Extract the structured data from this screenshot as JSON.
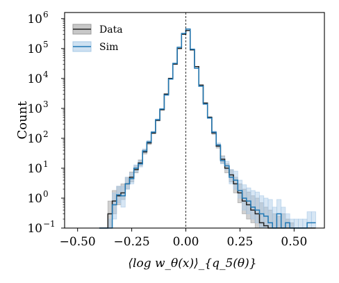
{
  "chart_data": {
    "type": "step-histogram",
    "xlabel": "⟨log w_θ(x)⟩_{q_5(θ)}",
    "ylabel": "Count",
    "y_scale": "log",
    "xlim": [
      -0.56,
      0.64
    ],
    "ylim": [
      0.1,
      1600000
    ],
    "x_ticks": [
      -0.5,
      -0.25,
      0.0,
      0.25,
      0.5
    ],
    "x_tick_labels": [
      "−0.50",
      "−0.25",
      "0.00",
      "0.25",
      "0.50"
    ],
    "y_ticks": [
      0.1,
      1,
      10,
      100,
      1000,
      10000,
      100000,
      1000000
    ],
    "y_tick_exponents": [
      "−1",
      "0",
      "1",
      "2",
      "3",
      "4",
      "5",
      "6"
    ],
    "reference_line_x": 0.0,
    "grid": false,
    "legend_position": "top-left",
    "bin_edges": [
      -0.4,
      -0.38,
      -0.36,
      -0.34,
      -0.32,
      -0.3,
      -0.28,
      -0.26,
      -0.24,
      -0.22,
      -0.2,
      -0.18,
      -0.16,
      -0.14,
      -0.12,
      -0.1,
      -0.08,
      -0.06,
      -0.04,
      -0.02,
      0.0,
      0.02,
      0.04,
      0.06,
      0.08,
      0.1,
      0.12,
      0.14,
      0.16,
      0.18,
      0.2,
      0.22,
      0.24,
      0.26,
      0.28,
      0.3,
      0.32,
      0.34,
      0.36,
      0.38,
      0.4,
      0.42,
      0.44,
      0.46,
      0.48,
      0.5,
      0.52,
      0.54,
      0.56,
      0.58,
      0.6
    ],
    "series": [
      {
        "name": "Data",
        "color": "#222222",
        "band_color": "#9a9a9a",
        "counts": [
          0.1,
          0.1,
          0.3,
          0.8,
          1.2,
          1.5,
          3,
          5,
          9,
          15,
          35,
          70,
          150,
          400,
          900,
          3000,
          10000,
          30000,
          100000,
          300000,
          400000,
          90000,
          25000,
          6000,
          1500,
          500,
          150,
          55,
          20,
          10,
          6,
          3,
          1.5,
          0.8,
          0.6,
          0.4,
          0.3,
          0.15,
          0.12,
          0.1,
          0.1,
          0.1,
          0.1,
          0.1,
          0.1,
          0.1,
          0.1,
          0.1,
          0.1,
          0.1
        ],
        "lower": [
          0.1,
          0.1,
          0.1,
          0.3,
          0.6,
          0.9,
          2,
          3.5,
          7,
          12,
          30,
          62,
          140,
          380,
          870,
          2950,
          9900,
          29800,
          99500,
          299000,
          399000,
          89700,
          24800,
          5900,
          1450,
          470,
          135,
          47,
          15,
          7,
          3.5,
          1.5,
          0.7,
          0.3,
          0.2,
          0.15,
          0.1,
          0.1,
          0.1,
          0.1,
          0.1,
          0.1,
          0.1,
          0.1,
          0.1,
          0.1,
          0.1,
          0.1,
          0.1,
          0.1
        ],
        "upper": [
          0.1,
          0.1,
          0.8,
          1.8,
          2.5,
          3,
          5,
          7.5,
          12,
          19,
          42,
          80,
          165,
          425,
          935,
          3060,
          10100,
          30200,
          100500,
          301000,
          401000,
          90300,
          25200,
          6100,
          1550,
          530,
          165,
          64,
          26,
          14,
          9,
          5,
          3,
          2,
          1.6,
          1.2,
          1,
          0.7,
          0.5,
          0.4,
          0.3,
          0.25,
          0.3,
          0.2,
          0.15,
          0.1,
          0.1,
          0.1,
          0.1,
          0.1
        ]
      },
      {
        "name": "Sim",
        "color": "#1f77b4",
        "band_color": "#a6c8e6",
        "counts": [
          0.1,
          0.1,
          0.1,
          0.6,
          1.3,
          1.2,
          3,
          4.5,
          10,
          14,
          38,
          75,
          160,
          420,
          950,
          2800,
          9500,
          32000,
          110000,
          320000,
          450000,
          95000,
          22000,
          5500,
          1400,
          480,
          160,
          60,
          18,
          12,
          5,
          4,
          1.8,
          1,
          0.8,
          0.5,
          0.4,
          0.3,
          0.25,
          0.15,
          0.1,
          0.3,
          0.1,
          0.15,
          0.1,
          0.1,
          0.1,
          0.1,
          0.15,
          0.15
        ],
        "lower": [
          0.1,
          0.1,
          0.1,
          0.2,
          0.7,
          0.5,
          2,
          3,
          7.5,
          11,
          33,
          67,
          150,
          400,
          920,
          2760,
          9400,
          31800,
          109500,
          319000,
          449000,
          94700,
          21800,
          5400,
          1350,
          455,
          145,
          52,
          14,
          9,
          3,
          2,
          1,
          0.4,
          0.3,
          0.2,
          0.15,
          0.1,
          0.1,
          0.1,
          0.1,
          0.1,
          0.1,
          0.1,
          0.1,
          0.1,
          0.1,
          0.1,
          0.1,
          0.1
        ],
        "upper": [
          0.1,
          0.1,
          0.2,
          1.5,
          2.5,
          2.5,
          5,
          7,
          13,
          18,
          44,
          84,
          172,
          442,
          982,
          2850,
          9600,
          32200,
          110500,
          321000,
          451000,
          95300,
          22300,
          5650,
          1460,
          510,
          175,
          70,
          24,
          17,
          9,
          8,
          4,
          2.8,
          2.2,
          1.8,
          1.6,
          1.2,
          1,
          0.9,
          0.5,
          0.9,
          0.5,
          0.3,
          0.2,
          0.2,
          0.2,
          0.2,
          0.35,
          0.35
        ]
      }
    ]
  }
}
